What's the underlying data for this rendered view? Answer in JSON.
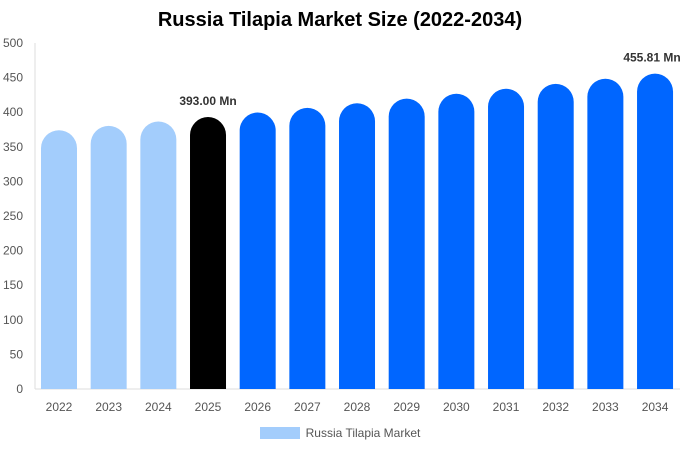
{
  "chart_data": {
    "type": "bar",
    "title": "Russia Tilapia Market Size (2022-2034)",
    "categories": [
      "2022",
      "2023",
      "2024",
      "2025",
      "2026",
      "2027",
      "2028",
      "2029",
      "2030",
      "2031",
      "2032",
      "2033",
      "2034"
    ],
    "series": [
      {
        "name": "Russia Tilapia Market",
        "values": [
          374.0,
          380.2,
          386.6,
          393.0,
          399.5,
          406.2,
          412.9,
          419.7,
          426.7,
          433.8,
          441.0,
          448.4,
          455.81
        ]
      }
    ],
    "ylim": [
      0,
      500
    ],
    "yticks": [
      0,
      50,
      100,
      150,
      200,
      250,
      300,
      350,
      400,
      450,
      500
    ],
    "data_labels": [
      {
        "category": "2025",
        "text": "393.00 Mn"
      },
      {
        "category": "2034",
        "text": "455.81 Mn"
      }
    ],
    "grid": false,
    "legend": "bottom",
    "colors": {
      "historical": "#a3cdfc",
      "current": "#000000",
      "forecast": "#0066ff"
    }
  }
}
